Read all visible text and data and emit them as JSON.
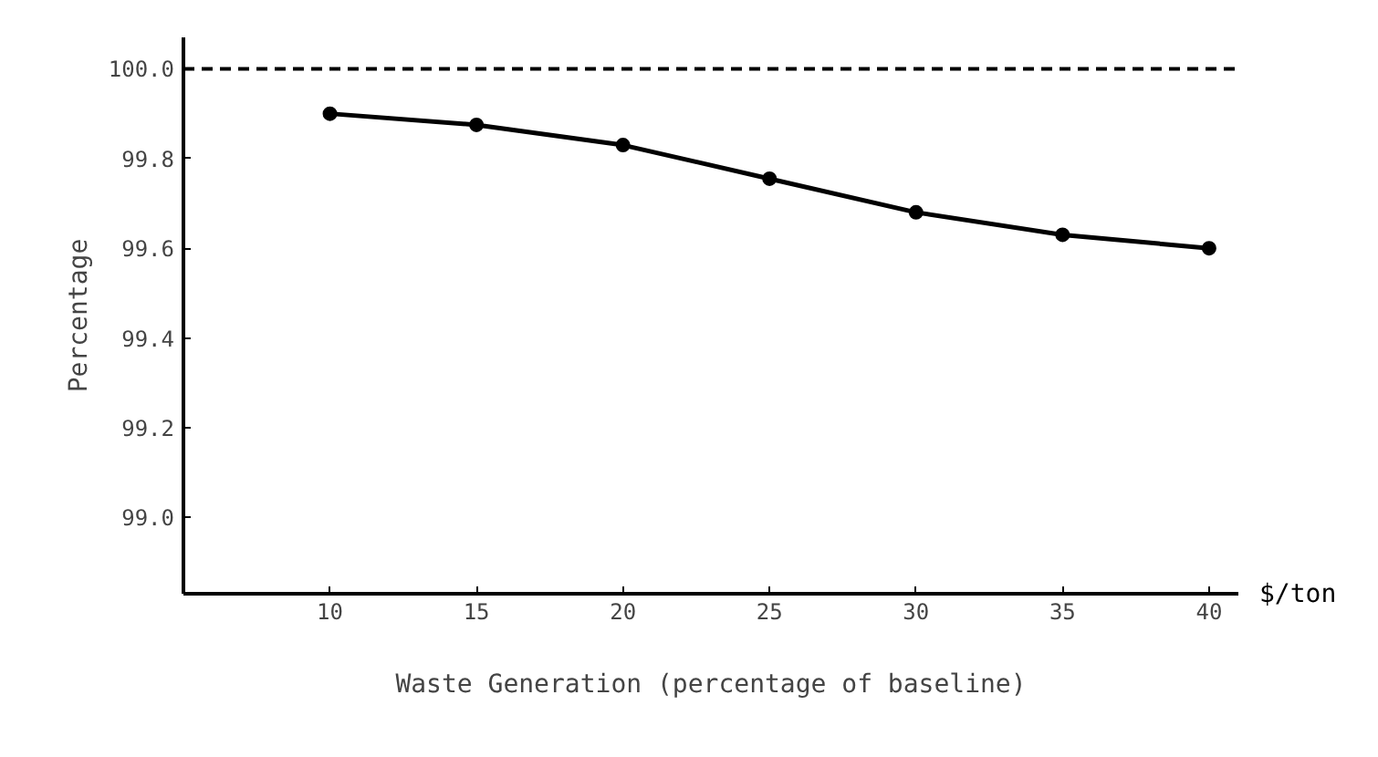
{
  "chart_data": {
    "type": "line",
    "xlabel": "Waste Generation (percentage of baseline)",
    "ylabel": "Percentage",
    "x": [
      10,
      15,
      20,
      25,
      30,
      35,
      40
    ],
    "series": [
      {
        "color": "#000000",
        "values": [
          99.9,
          99.875,
          99.83,
          99.755,
          99.68,
          99.63,
          99.6
        ]
      }
    ],
    "marker": "circle",
    "line_style": "solid",
    "grid": false,
    "xlim": [
      5,
      41
    ],
    "xticks": [
      10,
      15,
      20,
      25,
      30,
      35,
      40
    ],
    "ylim": [
      98.83,
      100.07
    ],
    "yticks": [
      {
        "value": 99.0,
        "label": "99.0"
      },
      {
        "value": 99.2,
        "label": "99.2"
      },
      {
        "value": 99.4,
        "label": "99.4"
      },
      {
        "value": 99.6,
        "label": "99.6"
      },
      {
        "value": 99.8,
        "label": "99.8"
      },
      {
        "value": 100.0,
        "label": "100.0"
      }
    ],
    "ref_lines": [
      {
        "axis": "y",
        "value": 100.0,
        "line_style": "dashed",
        "color": "#000000"
      }
    ],
    "annotations": [
      "$/ton"
    ]
  }
}
